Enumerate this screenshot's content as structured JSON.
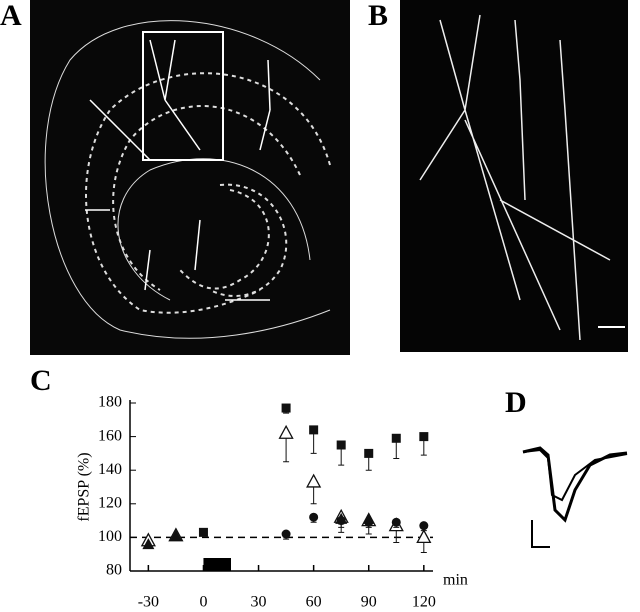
{
  "labels": [
    "A",
    "B",
    "D"
  ],
  "chart_data": {
    "type": "scatter",
    "panel_label": "C",
    "y_label": "fEPSP (%)",
    "x_label": "min",
    "xlim": [
      -40,
      125
    ],
    "xticks": [
      -30,
      0,
      30,
      60,
      90,
      120
    ],
    "ylim": [
      80,
      180
    ],
    "yticks": [
      80,
      100,
      120,
      140,
      160,
      180
    ],
    "reference_line": 100,
    "stimulus_bar": [
      0,
      15
    ],
    "series": [
      {
        "marker": "square",
        "color": "#111",
        "x": [
          0,
          45,
          60,
          75,
          90,
          105,
          120
        ],
        "values": [
          103,
          177,
          164,
          155,
          150,
          159,
          160
        ],
        "errors": [
          2,
          3,
          14,
          12,
          10,
          12,
          11
        ]
      },
      {
        "marker": "triangle-open",
        "color": "#111",
        "x": [
          -30,
          -15,
          45,
          60,
          75,
          90,
          105,
          120
        ],
        "values": [
          98,
          101,
          162,
          133,
          112,
          110,
          107,
          100
        ],
        "errors": [
          2,
          2,
          17,
          13,
          9,
          8,
          10,
          9
        ]
      },
      {
        "marker": "circle",
        "color": "#111",
        "x": [
          45,
          60,
          75,
          90,
          105,
          120
        ],
        "values": [
          102,
          112,
          110,
          109,
          109,
          107
        ],
        "errors": [
          3,
          3,
          4,
          3,
          3,
          3
        ]
      },
      {
        "marker": "triangle",
        "color": "#111",
        "x": [
          -30,
          -15,
          75,
          90
        ],
        "values": [
          96,
          101,
          111,
          111
        ],
        "errors": [
          2,
          2,
          3,
          3
        ]
      }
    ]
  }
}
